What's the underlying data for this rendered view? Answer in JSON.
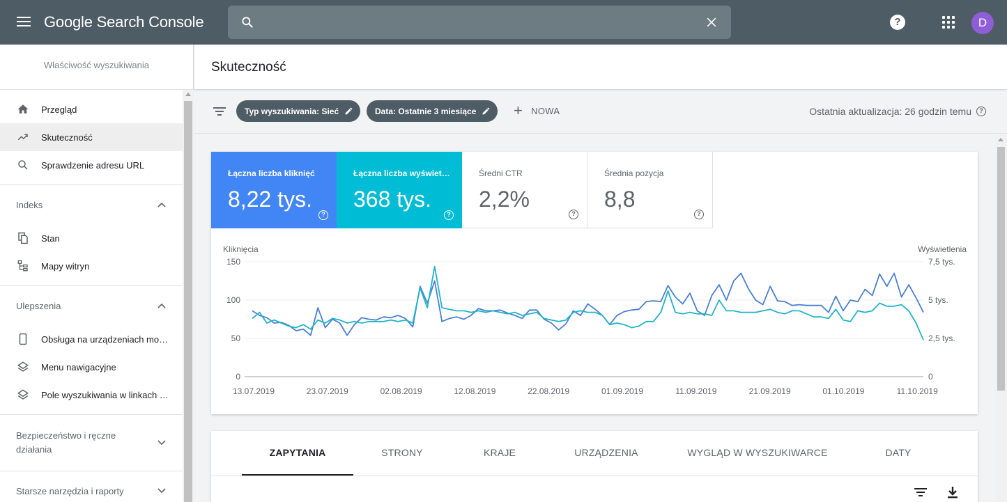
{
  "app": {
    "title": "Google Search Console",
    "avatar_letter": "D",
    "help_glyph": "?"
  },
  "search": {
    "value": "",
    "placeholder": ""
  },
  "sidebar": {
    "property_label": "Właściwość wyszukiwania",
    "top_items": [
      {
        "label": "Przegląd",
        "icon": "home-icon"
      },
      {
        "label": "Skuteczność",
        "icon": "trending-up-icon",
        "active": true
      },
      {
        "label": "Sprawdzenie adresu URL",
        "icon": "search-icon"
      }
    ],
    "sections": {
      "index": {
        "title": "Indeks",
        "items": [
          {
            "label": "Stan",
            "icon": "copy-icon"
          },
          {
            "label": "Mapy witryn",
            "icon": "sitemap-icon"
          }
        ]
      },
      "enhancements": {
        "title": "Ulepszenia",
        "items": [
          {
            "label": "Obsługa na urządzeniach mobilnych",
            "icon": "phone-icon"
          },
          {
            "label": "Menu nawigacyjne",
            "icon": "layers-icon"
          },
          {
            "label": "Pole wyszukiwania w linkach do podstron",
            "icon": "layers-icon"
          }
        ]
      },
      "security": {
        "title": "Bezpieczeństwo i ręczne działania"
      },
      "legacy": {
        "title": "Starsze narzędzia i raporty"
      }
    }
  },
  "page": {
    "title": "Skuteczność"
  },
  "filters": {
    "chips": [
      "Typ wyszukiwania: Sieć",
      "Data: Ostatnie 3 miesiące"
    ],
    "new_label": "NOWA",
    "last_update": "Ostatnia aktualizacja: 26 godzin temu",
    "help_glyph": "?"
  },
  "metrics": [
    {
      "label": "Łączna liczba kliknięć",
      "value": "8,22 tys.",
      "help": "?"
    },
    {
      "label": "Łączna liczba wyświetleń",
      "value": "368 tys.",
      "help": "?"
    },
    {
      "label": "Średni CTR",
      "value": "2,2%",
      "help": "?"
    },
    {
      "label": "Średnia pozycja",
      "value": "8,8",
      "help": "?"
    }
  ],
  "chart_data": {
    "type": "line",
    "ylabel_left": "Kliknięcia",
    "ylabel_right": "Wyświetlenia",
    "yticks_left": [
      "150",
      "100",
      "50",
      "0"
    ],
    "yticks_right": [
      "7,5 tys.",
      "5 tys.",
      "2,5 tys.",
      "0"
    ],
    "ylim_left": [
      0,
      150
    ],
    "ylim_right": [
      0,
      7500
    ],
    "xticks": [
      "13.07.2019",
      "23.07.2019",
      "02.08.2019",
      "12.08.2019",
      "22.08.2019",
      "01.09.2019",
      "11.09.2019",
      "21.09.2019",
      "01.10.2019",
      "11.10.2019"
    ],
    "grid": true,
    "colors": {
      "clicks": "#4a7fd1",
      "impressions": "#1fb3c9",
      "grid": "#eeeeee",
      "axis": "#9e9e9e"
    },
    "series": [
      {
        "name": "Kliknięcia",
        "axis": "left",
        "values": [
          86,
          80,
          77,
          70,
          71,
          67,
          60,
          62,
          54,
          90,
          64,
          75,
          70,
          54,
          68,
          77,
          75,
          74,
          78,
          77,
          80,
          76,
          65,
          118,
          96,
          125,
          72,
          76,
          78,
          75,
          80,
          89,
          86,
          86,
          87,
          83,
          80,
          76,
          87,
          87,
          75,
          70,
          61,
          69,
          86,
          80,
          95,
          88,
          80,
          68,
          80,
          85,
          87,
          88,
          98,
          99,
          98,
          119,
          104,
          95,
          109,
          86,
          80,
          106,
          120,
          100,
          125,
          135,
          115,
          100,
          94,
          118,
          99,
          98,
          93,
          94,
          93,
          93,
          93,
          84,
          105,
          86,
          100,
          98,
          114,
          106,
          134,
          118,
          135,
          104,
          120,
          103,
          84
        ]
      },
      {
        "name": "Wyświetlenia",
        "axis": "right",
        "values": [
          3800,
          4200,
          3500,
          3700,
          3500,
          3300,
          3200,
          3400,
          3100,
          3700,
          3500,
          3800,
          3700,
          3500,
          3600,
          3500,
          3600,
          3600,
          3600,
          3700,
          3600,
          3700,
          3500,
          5800,
          4500,
          7200,
          4500,
          4400,
          4300,
          4300,
          4200,
          4300,
          4200,
          4300,
          4200,
          4100,
          4200,
          4000,
          4100,
          4200,
          3800,
          3700,
          3600,
          3700,
          4200,
          4300,
          4200,
          4200,
          4000,
          3400,
          3500,
          3400,
          3200,
          3300,
          3600,
          3600,
          4200,
          5600,
          4200,
          4100,
          4200,
          4100,
          4100,
          4000,
          5000,
          4300,
          4300,
          4200,
          4200,
          4200,
          4300,
          4400,
          4200,
          4100,
          4300,
          4300,
          4100,
          3900,
          3900,
          3800,
          4400,
          3700,
          3600,
          4300,
          4200,
          4300,
          4800,
          4600,
          4600,
          4700,
          4300,
          3500,
          2400
        ]
      }
    ]
  },
  "tabs": [
    {
      "label": "ZAPYTANIA",
      "active": true
    },
    {
      "label": "STRONY"
    },
    {
      "label": "KRAJE"
    },
    {
      "label": "URZĄDZENIA"
    },
    {
      "label": "WYGLĄD W WYSZUKIWARCE"
    },
    {
      "label": "DATY"
    }
  ]
}
